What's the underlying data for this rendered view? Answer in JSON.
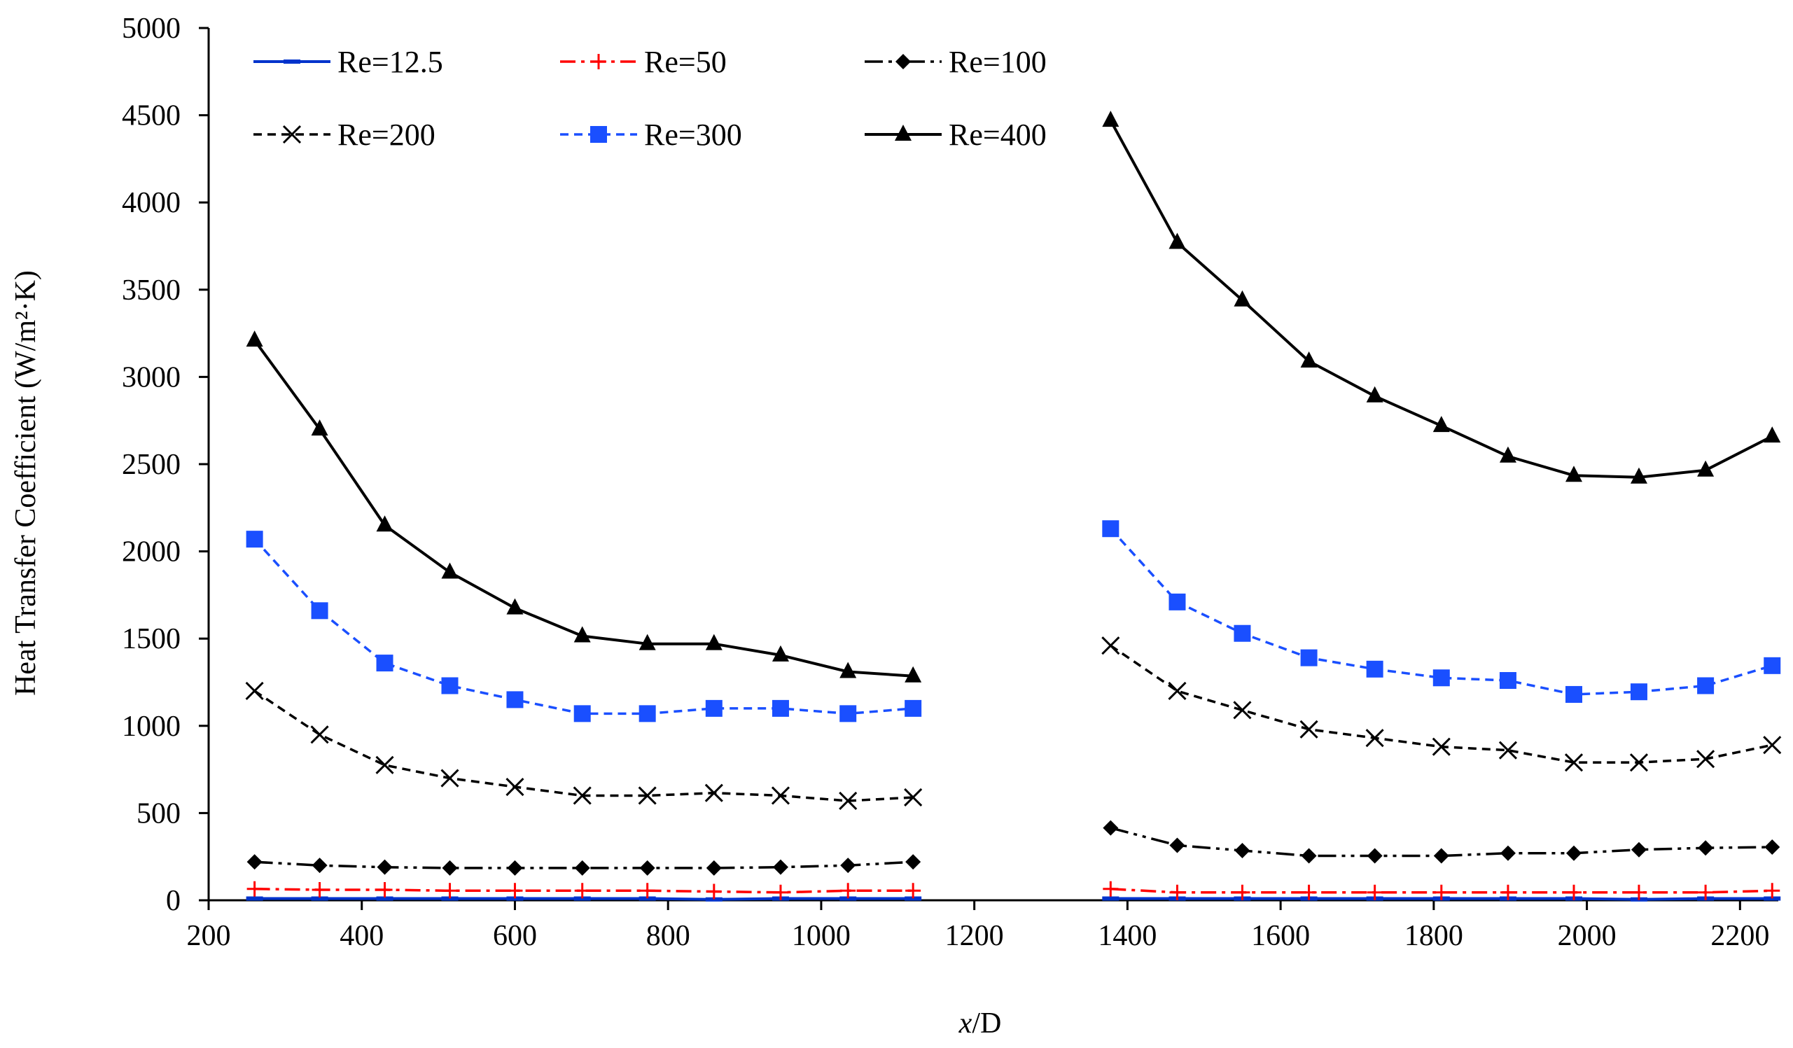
{
  "chart_data": {
    "type": "line",
    "title": "",
    "xlabel_italic": "x",
    "xlabel_rest": "/D",
    "ylabel": "Heat Transfer Coefficient (W/m²·K)",
    "xlim": [
      200,
      2250
    ],
    "ylim": [
      0,
      5000
    ],
    "xticks": [
      200,
      400,
      600,
      800,
      1000,
      1200,
      1400,
      1600,
      1800,
      2000,
      2200
    ],
    "yticks": [
      0,
      500,
      1000,
      1500,
      2000,
      2500,
      3000,
      3500,
      4000,
      4500,
      5000
    ],
    "grid": false,
    "legend_position": "top-left",
    "segments_x": [
      [
        260,
        345,
        430,
        515,
        600,
        688,
        773,
        860,
        947,
        1035,
        1120
      ],
      [
        1378,
        1465,
        1550,
        1637,
        1723,
        1810,
        1897,
        1983,
        2068,
        2155,
        2242
      ]
    ],
    "series": [
      {
        "name": "Re=12.5",
        "color": "#0033cc",
        "dash": "solid",
        "marker": "dash",
        "segments": [
          [
            10,
            10,
            10,
            10,
            10,
            10,
            10,
            5,
            10,
            10,
            10
          ],
          [
            10,
            10,
            10,
            10,
            10,
            10,
            10,
            10,
            5,
            10,
            10
          ]
        ]
      },
      {
        "name": "Re=50",
        "color": "#ff0000",
        "dash": "dashdot",
        "marker": "plus",
        "segments": [
          [
            65,
            60,
            60,
            55,
            55,
            55,
            55,
            50,
            45,
            55,
            55
          ],
          [
            65,
            45,
            45,
            45,
            45,
            45,
            45,
            45,
            45,
            45,
            55
          ]
        ]
      },
      {
        "name": "Re=100",
        "color": "#000000",
        "dash": "dashdotdot",
        "marker": "diamond",
        "segments": [
          [
            220,
            200,
            190,
            185,
            185,
            185,
            185,
            185,
            190,
            200,
            220
          ],
          [
            415,
            315,
            285,
            255,
            255,
            255,
            270,
            270,
            290,
            300,
            305
          ]
        ]
      },
      {
        "name": "Re=200",
        "color": "#000000",
        "dash": "dashed",
        "marker": "x",
        "segments": [
          [
            1200,
            950,
            775,
            700,
            650,
            600,
            600,
            615,
            600,
            570,
            590
          ],
          [
            1460,
            1200,
            1090,
            980,
            930,
            880,
            860,
            790,
            790,
            810,
            890
          ]
        ]
      },
      {
        "name": "Re=300",
        "color": "#1a4fff",
        "dash": "dashed",
        "marker": "square",
        "segments": [
          [
            2070,
            1660,
            1360,
            1230,
            1150,
            1070,
            1070,
            1100,
            1100,
            1070,
            1100
          ],
          [
            2130,
            1710,
            1530,
            1390,
            1325,
            1275,
            1260,
            1180,
            1195,
            1230,
            1345
          ]
        ]
      },
      {
        "name": "Re=400",
        "color": "#000000",
        "dash": "solid",
        "marker": "triangle",
        "segments": [
          [
            3210,
            2700,
            2150,
            1880,
            1675,
            1515,
            1470,
            1470,
            1405,
            1310,
            1285
          ],
          [
            4470,
            3770,
            3440,
            3090,
            2890,
            2720,
            2545,
            2435,
            2425,
            2465,
            2660
          ]
        ]
      }
    ]
  }
}
